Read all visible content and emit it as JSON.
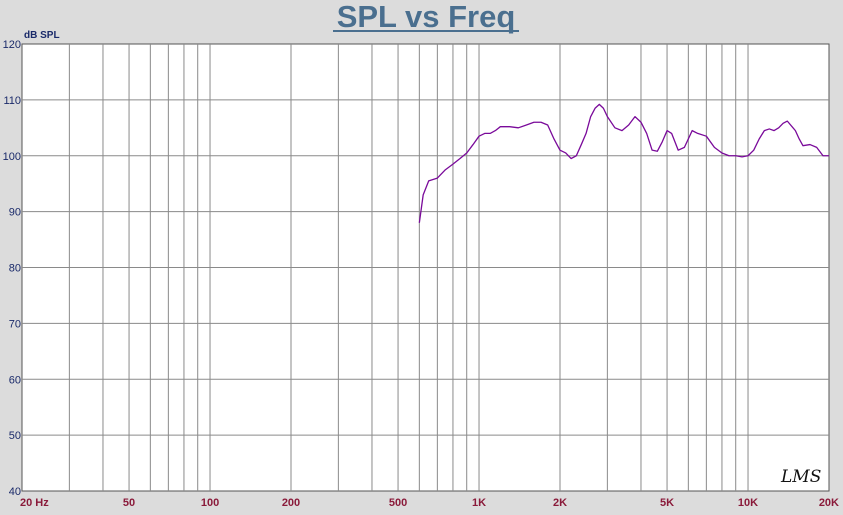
{
  "chart_data": {
    "type": "line",
    "title": "SPL vs Freq",
    "ylabel": "dB SPL",
    "xlabel": "",
    "x_scale": "log",
    "xlim": [
      20,
      20000
    ],
    "ylim": [
      40,
      120
    ],
    "grid": true,
    "yticks": [
      120,
      110,
      100,
      90,
      80,
      70,
      60,
      50,
      40
    ],
    "xticks": [
      {
        "value": 20,
        "label": "20 Hz"
      },
      {
        "value": 50,
        "label": "50"
      },
      {
        "value": 100,
        "label": "100"
      },
      {
        "value": 200,
        "label": "200"
      },
      {
        "value": 500,
        "label": "500"
      },
      {
        "value": 1000,
        "label": "1K"
      },
      {
        "value": 2000,
        "label": "2K"
      },
      {
        "value": 5000,
        "label": "5K"
      },
      {
        "value": 10000,
        "label": "10K"
      },
      {
        "value": 20000,
        "label": "20K"
      }
    ],
    "series": [
      {
        "color": "#7a0a9a",
        "x": [
          600,
          620,
          650,
          700,
          750,
          800,
          850,
          900,
          950,
          1000,
          1050,
          1100,
          1150,
          1200,
          1300,
          1400,
          1500,
          1600,
          1700,
          1800,
          1900,
          2000,
          2100,
          2200,
          2300,
          2400,
          2500,
          2600,
          2700,
          2800,
          2900,
          3000,
          3200,
          3400,
          3600,
          3800,
          4000,
          4200,
          4400,
          4600,
          4800,
          5000,
          5200,
          5500,
          5800,
          6200,
          6500,
          7000,
          7500,
          8000,
          8500,
          9000,
          9500,
          10000,
          10500,
          11000,
          11500,
          12000,
          12500,
          13000,
          13500,
          14000,
          15000,
          15500,
          16000,
          17000,
          18000,
          19000,
          20000
        ],
        "y": [
          88,
          93,
          95.5,
          96,
          97.5,
          98.5,
          99.5,
          100.5,
          102,
          103.5,
          104,
          104,
          104.5,
          105.2,
          105.2,
          105,
          105.5,
          106,
          106,
          105.5,
          103,
          101,
          100.5,
          99.5,
          100,
          102,
          104,
          107,
          108.5,
          109.2,
          108.5,
          107,
          105,
          104.5,
          105.5,
          107,
          106,
          104,
          101,
          100.8,
          102.5,
          104.5,
          104,
          101,
          101.5,
          104.5,
          104,
          103.5,
          101.5,
          100.5,
          100,
          100,
          99.8,
          100,
          101,
          103,
          104.5,
          104.8,
          104.5,
          105,
          105.8,
          106.2,
          104.5,
          103,
          101.8,
          102,
          101.5,
          100,
          100
        ]
      }
    ]
  },
  "branding": {
    "logo_text": "LMS"
  }
}
